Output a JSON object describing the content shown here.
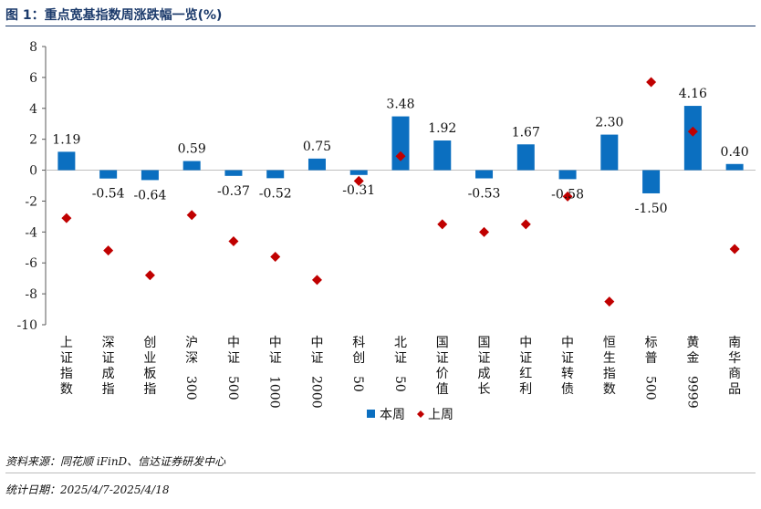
{
  "title": "图 1：重点宽基指数周涨跌幅一览(%)",
  "footnotes": {
    "source": "资料来源：同花顺 iFinD、信达证券研发中心",
    "period": "统计日期：2025/4/7-2025/4/18"
  },
  "colors": {
    "bar": "#0b6fc0",
    "marker": "#c00000",
    "title": "#1b3a6b",
    "axis": "#595959"
  },
  "chart_data": {
    "type": "bar",
    "title": "重点宽基指数周涨跌幅一览(%)",
    "categories": [
      "上证指数",
      "深证成指",
      "创业板指",
      "沪深300",
      "中证500",
      "中证1000",
      "中证2000",
      "科创50",
      "北证50",
      "国证价值",
      "国证成长",
      "中证红利",
      "中证转债",
      "恒生指数",
      "标普500",
      "黄金9999",
      "南华商品"
    ],
    "category_lines": [
      [
        "上",
        "证",
        "指",
        "数"
      ],
      [
        "深",
        "证",
        "成",
        "指"
      ],
      [
        "创",
        "业",
        "板",
        "指"
      ],
      [
        "沪",
        "深",
        "300"
      ],
      [
        "中",
        "证",
        "500"
      ],
      [
        "中",
        "证",
        "1000"
      ],
      [
        "中",
        "证",
        "2000"
      ],
      [
        "科",
        "创",
        "50"
      ],
      [
        "北",
        "证",
        "50"
      ],
      [
        "国",
        "证",
        "价",
        "值"
      ],
      [
        "国",
        "证",
        "成",
        "长"
      ],
      [
        "中",
        "证",
        "红",
        "利"
      ],
      [
        "中",
        "证",
        "转",
        "债"
      ],
      [
        "恒",
        "生",
        "指",
        "数"
      ],
      [
        "标",
        "普",
        "500"
      ],
      [
        "黄",
        "金",
        "9999"
      ],
      [
        "南",
        "华",
        "商",
        "品"
      ]
    ],
    "series": [
      {
        "name": "本周",
        "type": "bar",
        "values": [
          1.19,
          -0.54,
          -0.64,
          0.59,
          -0.37,
          -0.52,
          0.75,
          -0.31,
          3.48,
          1.92,
          -0.53,
          1.67,
          -0.58,
          2.3,
          -1.5,
          4.16,
          0.4
        ],
        "labels": [
          "1.19",
          "-0.54",
          "-0.64",
          "0.59",
          "-0.37",
          "-0.52",
          "0.75",
          "-0.31",
          "3.48",
          "1.92",
          "-0.53",
          "1.67",
          "-0.58",
          "2.30",
          "-1.50",
          "4.16",
          "0.40"
        ]
      },
      {
        "name": "上周",
        "type": "scatter",
        "marker": "diamond",
        "values": [
          -3.1,
          -5.2,
          -6.8,
          -2.9,
          -4.6,
          -5.6,
          -7.1,
          -0.7,
          0.9,
          -3.5,
          -4.0,
          -3.5,
          -1.7,
          -8.5,
          5.7,
          2.5,
          -5.1
        ]
      }
    ],
    "ylim": [
      -10,
      8
    ],
    "yticks": [
      -10,
      -8,
      -6,
      -4,
      -2,
      0,
      2,
      4,
      6,
      8
    ],
    "ytick_labels": [
      "-10",
      "-8",
      "-6",
      "-4",
      "-2",
      "0",
      "2",
      "4",
      "6",
      "8"
    ],
    "xlabel": "",
    "ylabel": "",
    "grid": false,
    "legend": {
      "position": "bottom",
      "entries": [
        "本周",
        "上周"
      ]
    }
  }
}
